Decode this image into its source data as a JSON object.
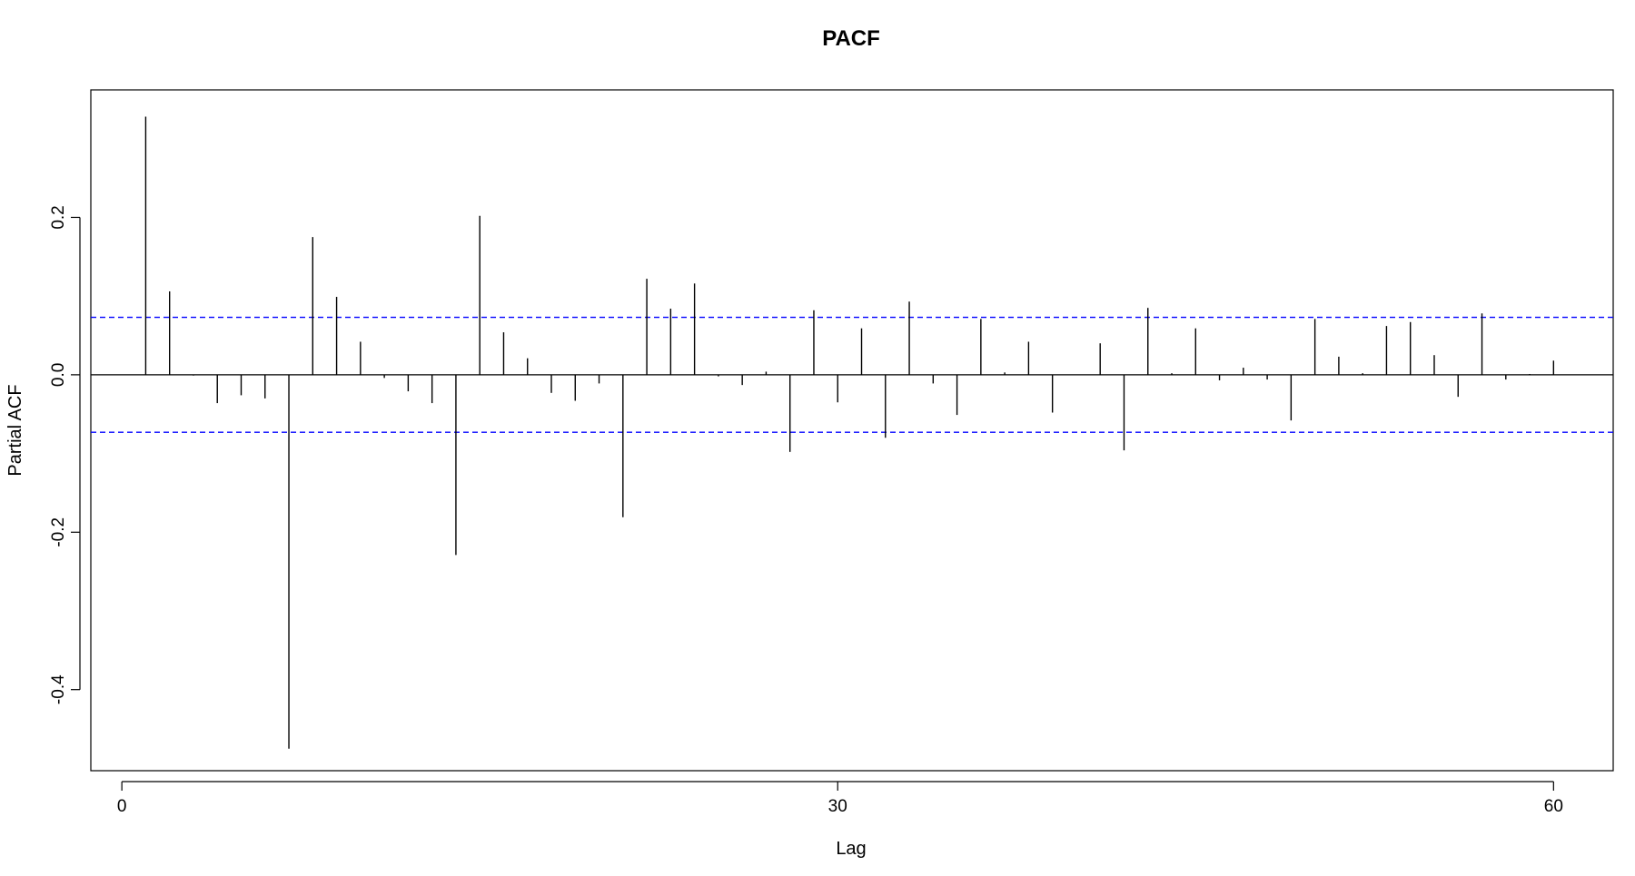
{
  "chart_data": {
    "type": "bar",
    "title": "PACF",
    "xlabel": "Lag",
    "ylabel": "Partial ACF",
    "xlim": [
      -1.3,
      62.5
    ],
    "ylim": [
      -0.503,
      0.362
    ],
    "x_ticks": [
      0,
      30,
      60
    ],
    "x_tick_labels": [
      "0",
      "30",
      "60"
    ],
    "y_ticks": [
      -0.4,
      -0.2,
      0.0,
      0.2
    ],
    "y_tick_labels": [
      "-0.4",
      "-0.2",
      "0.0",
      "0.2"
    ],
    "grid": false,
    "confidence_limit": 0.073,
    "confidence_color": "#0000ff",
    "bar_color": "#000000",
    "lags": [
      1,
      2,
      3,
      4,
      5,
      6,
      7,
      8,
      9,
      10,
      11,
      12,
      13,
      14,
      15,
      16,
      17,
      18,
      19,
      20,
      21,
      22,
      23,
      24,
      25,
      26,
      27,
      28,
      29,
      30,
      31,
      32,
      33,
      34,
      35,
      36,
      37,
      38,
      39,
      40,
      41,
      42,
      43,
      44,
      45,
      46,
      47,
      48,
      49,
      50,
      51,
      52,
      53,
      54,
      55,
      56,
      57,
      58,
      59,
      60
    ],
    "values": [
      0.328,
      0.106,
      -0.001,
      -0.036,
      -0.026,
      -0.03,
      -0.475,
      0.175,
      0.099,
      0.042,
      -0.004,
      -0.021,
      -0.036,
      -0.229,
      0.202,
      0.054,
      0.021,
      -0.023,
      -0.033,
      -0.011,
      -0.181,
      0.122,
      0.084,
      0.116,
      -0.002,
      -0.013,
      0.004,
      -0.098,
      0.082,
      -0.035,
      0.059,
      -0.08,
      0.093,
      -0.011,
      -0.051,
      0.071,
      0.003,
      0.042,
      -0.048,
      0.0,
      0.04,
      -0.096,
      0.085,
      0.002,
      0.059,
      -0.007,
      0.009,
      -0.006,
      -0.058,
      0.071,
      0.023,
      0.002,
      0.062,
      0.067,
      0.025,
      -0.028,
      0.078,
      -0.006,
      0.001,
      0.018
    ]
  }
}
